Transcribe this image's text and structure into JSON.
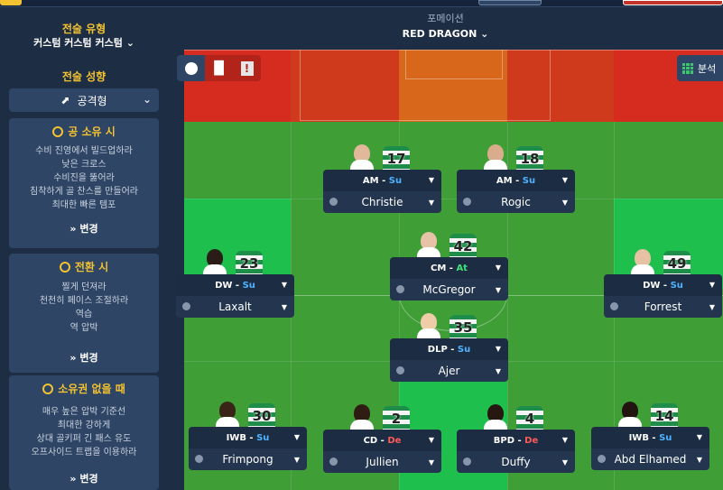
{
  "colors": {
    "bg": "#1d2d44",
    "card": "#2e4565",
    "accent": "#f2c230",
    "duty_support": "#4fb3ff",
    "duty_attack": "#3ee07a",
    "duty_defend": "#ff5a5a",
    "pitch_red": "#d62b1f",
    "pitch_orange": "#d8671c",
    "pitch_green": "#3f9e36",
    "pitch_bright_green": "#1fbf4e"
  },
  "sidebar": {
    "tactic_style_title": "전술 유형",
    "tactic_style_value": "커스텀 커스텀 커스텀",
    "mentality_title": "전술 성향",
    "mentality_value": "공격형",
    "in_possession": {
      "title": "공 소유 시",
      "lines": [
        "수비 진영에서 빌드업하라",
        "낮은 크로스",
        "수비진을 뚫어라",
        "침착하게 골 찬스를 만들어라",
        "최대한 빠른 템포"
      ],
      "change": "변경"
    },
    "in_transition": {
      "title": "전환 시",
      "lines": [
        "찔게 던져라",
        "천천히 페이스 조절하라",
        "역습",
        "역 압박"
      ],
      "change": "변경"
    },
    "out_of_possession": {
      "title": "소유권 없을 때",
      "lines": [
        "매우 높은 압박 기준선",
        "최대한 강하게",
        "상대 골키퍼 긴 패스 유도",
        "오프사이드 트랩을 이용하라"
      ],
      "change": "변경"
    }
  },
  "header": {
    "formation_label": "포메이션",
    "formation_value": "RED DRAGON"
  },
  "toolbar": {
    "analysis_label": "분석",
    "icons": [
      "person-icon",
      "bar-chart-icon",
      "exclamation-icon"
    ]
  },
  "players": [
    {
      "role": "AM",
      "duty": "Su",
      "duty_class": "su",
      "name": "Christie",
      "number": "17",
      "skin": "#e2b89a"
    },
    {
      "role": "AM",
      "duty": "Su",
      "duty_class": "su",
      "name": "Rogic",
      "number": "18",
      "skin": "#d9ad8c"
    },
    {
      "role": "CM",
      "duty": "At",
      "duty_class": "at",
      "name": "McGregor",
      "number": "42",
      "skin": "#e6c2a6"
    },
    {
      "role": "DW",
      "duty": "Su",
      "duty_class": "su",
      "name": "Laxalt",
      "number": "23",
      "skin": "#2a1c16"
    },
    {
      "role": "DW",
      "duty": "Su",
      "duty_class": "su",
      "name": "Forrest",
      "number": "49",
      "skin": "#e7c1a4"
    },
    {
      "role": "DLP",
      "duty": "Su",
      "duty_class": "su",
      "name": "Ajer",
      "number": "35",
      "skin": "#f0cda9"
    },
    {
      "role": "IWB",
      "duty": "Su",
      "duty_class": "su",
      "name": "Frimpong",
      "number": "30",
      "skin": "#3a2418"
    },
    {
      "role": "CD",
      "duty": "De",
      "duty_class": "de",
      "name": "Jullien",
      "number": "2",
      "skin": "#2f1d14"
    },
    {
      "role": "BPD",
      "duty": "De",
      "duty_class": "de",
      "name": "Duffy",
      "number": "4",
      "skin": "#261710"
    },
    {
      "role": "IWB",
      "duty": "Su",
      "duty_class": "su",
      "name": "Abd Elhamed",
      "number": "14",
      "skin": "#221510"
    }
  ],
  "role_separator": " - "
}
